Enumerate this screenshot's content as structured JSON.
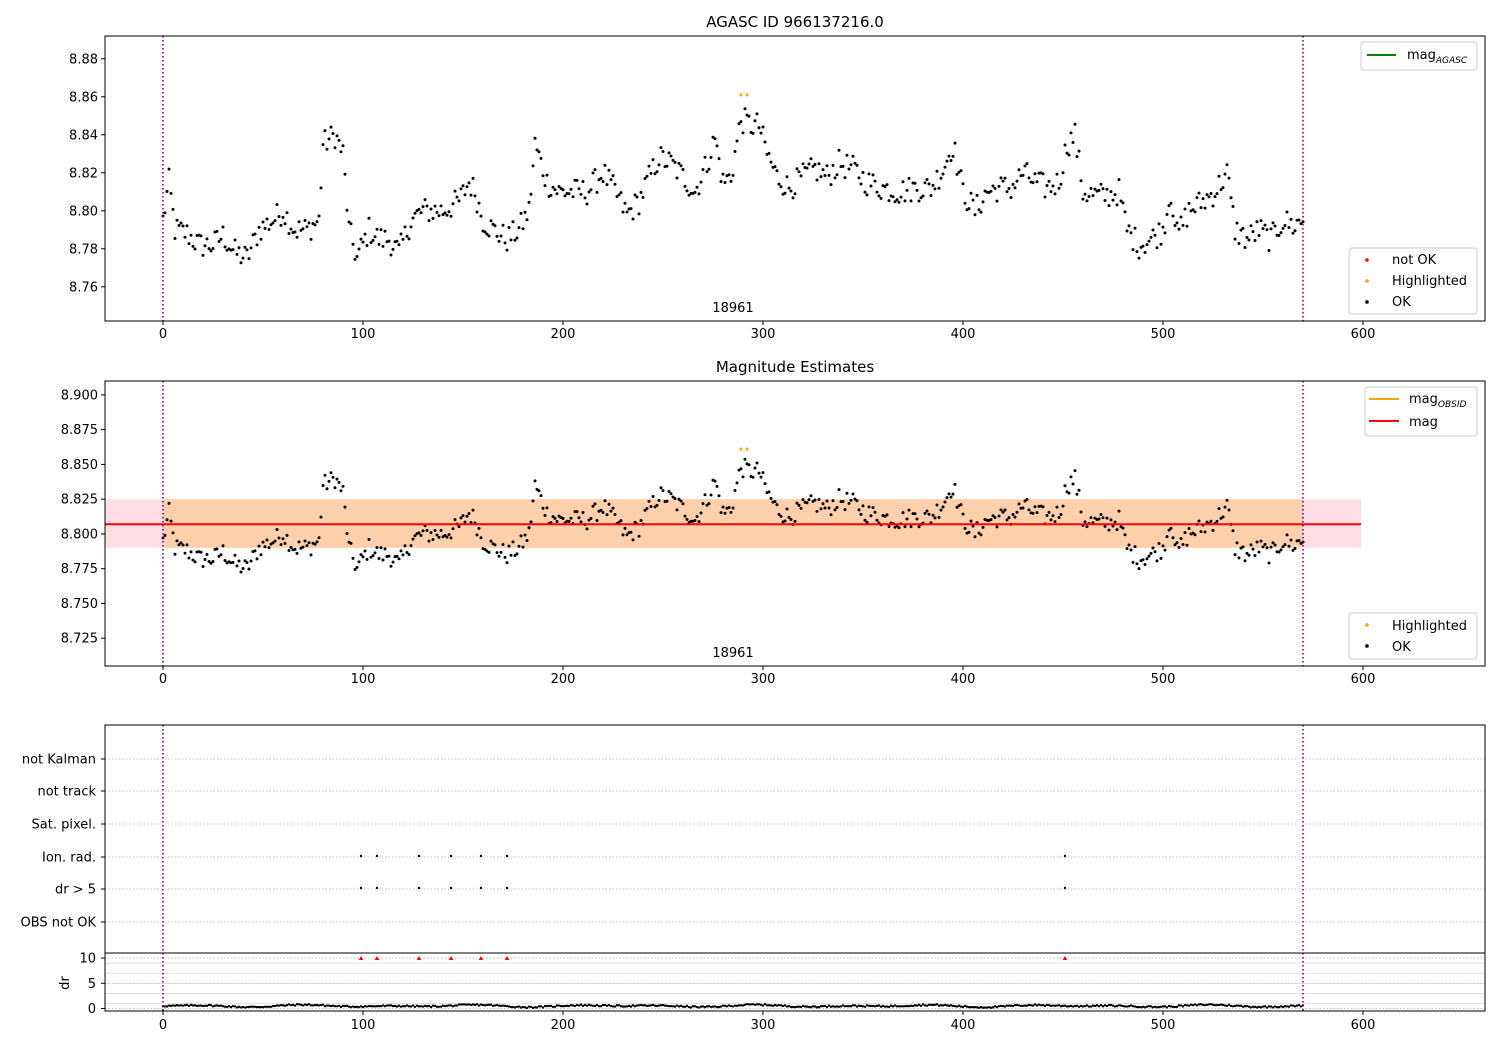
{
  "chart_data": [
    {
      "type": "scatter",
      "title": "AGASC ID 966137216.0",
      "annotation": "18961",
      "xlim": [
        -29,
        661
      ],
      "ylim": [
        8.742,
        8.892
      ],
      "xticks": [
        0,
        100,
        200,
        300,
        400,
        500,
        600
      ],
      "yticks": [
        8.76,
        8.78,
        8.8,
        8.82,
        8.84,
        8.86,
        8.88
      ],
      "ytick_labels": [
        "8.76",
        "8.78",
        "8.80",
        "8.82",
        "8.84",
        "8.86",
        "8.88"
      ],
      "vlines": [
        0,
        570
      ],
      "legend_top": [
        {
          "label": "mag",
          "sub": "AGASC",
          "color": "#008000"
        }
      ],
      "legend_bottom": [
        {
          "label": "not OK",
          "color": "#ff0000"
        },
        {
          "label": "Highlighted",
          "color": "#ffa500"
        },
        {
          "label": "OK",
          "color": "#000000"
        }
      ],
      "series": [
        {
          "name": "OK",
          "color": "#000000",
          "anchors": [
            [
              0,
              8.795
            ],
            [
              3,
              8.815
            ],
            [
              6,
              8.79
            ],
            [
              12,
              8.788
            ],
            [
              18,
              8.782
            ],
            [
              25,
              8.782
            ],
            [
              30,
              8.787
            ],
            [
              36,
              8.778
            ],
            [
              42,
              8.775
            ],
            [
              48,
              8.79
            ],
            [
              55,
              8.795
            ],
            [
              60,
              8.8
            ],
            [
              66,
              8.79
            ],
            [
              72,
              8.79
            ],
            [
              78,
              8.795
            ],
            [
              80,
              8.835
            ],
            [
              86,
              8.84
            ],
            [
              90,
              8.83
            ],
            [
              93,
              8.79
            ],
            [
              97,
              8.775
            ],
            [
              103,
              8.79
            ],
            [
              108,
              8.785
            ],
            [
              113,
              8.785
            ],
            [
              118,
              8.778
            ],
            [
              124,
              8.795
            ],
            [
              130,
              8.8
            ],
            [
              140,
              8.8
            ],
            [
              148,
              8.805
            ],
            [
              153,
              8.815
            ],
            [
              156,
              8.81
            ],
            [
              160,
              8.795
            ],
            [
              165,
              8.79
            ],
            [
              172,
              8.785
            ],
            [
              178,
              8.79
            ],
            [
              183,
              8.8
            ],
            [
              186,
              8.835
            ],
            [
              192,
              8.815
            ],
            [
              198,
              8.81
            ],
            [
              205,
              8.81
            ],
            [
              212,
              8.81
            ],
            [
              220,
              8.82
            ],
            [
              226,
              8.81
            ],
            [
              232,
              8.798
            ],
            [
              238,
              8.805
            ],
            [
              242,
              8.815
            ],
            [
              248,
              8.828
            ],
            [
              254,
              8.825
            ],
            [
              260,
              8.818
            ],
            [
              266,
              8.81
            ],
            [
              272,
              8.825
            ],
            [
              276,
              8.838
            ],
            [
              280,
              8.815
            ],
            [
              284,
              8.818
            ],
            [
              289,
              8.848
            ],
            [
              294,
              8.845
            ],
            [
              298,
              8.845
            ],
            [
              302,
              8.83
            ],
            [
              307,
              8.818
            ],
            [
              313,
              8.812
            ],
            [
              320,
              8.818
            ],
            [
              326,
              8.822
            ],
            [
              332,
              8.818
            ],
            [
              338,
              8.825
            ],
            [
              345,
              8.822
            ],
            [
              352,
              8.815
            ],
            [
              360,
              8.812
            ],
            [
              368,
              8.81
            ],
            [
              376,
              8.812
            ],
            [
              384,
              8.812
            ],
            [
              390,
              8.822
            ],
            [
              395,
              8.835
            ],
            [
              400,
              8.81
            ],
            [
              406,
              8.8
            ],
            [
              412,
              8.81
            ],
            [
              418,
              8.812
            ],
            [
              424,
              8.812
            ],
            [
              430,
              8.82
            ],
            [
              436,
              8.815
            ],
            [
              442,
              8.812
            ],
            [
              448,
              8.815
            ],
            [
              452,
              8.835
            ],
            [
              456,
              8.84
            ],
            [
              460,
              8.81
            ],
            [
              466,
              8.808
            ],
            [
              472,
              8.808
            ],
            [
              478,
              8.81
            ],
            [
              482,
              8.79
            ],
            [
              488,
              8.782
            ],
            [
              494,
              8.785
            ],
            [
              500,
              8.79
            ],
            [
              504,
              8.81
            ],
            [
              507,
              8.787
            ],
            [
              513,
              8.8
            ],
            [
              520,
              8.805
            ],
            [
              526,
              8.81
            ],
            [
              532,
              8.82
            ],
            [
              536,
              8.79
            ],
            [
              542,
              8.785
            ],
            [
              548,
              8.79
            ],
            [
              554,
              8.785
            ],
            [
              560,
              8.795
            ],
            [
              565,
              8.792
            ],
            [
              570,
              8.795
            ]
          ]
        },
        {
          "name": "Highlighted",
          "color": "#ffa500",
          "points": [
            [
              289,
              8.861
            ],
            [
              292,
              8.861
            ]
          ]
        }
      ]
    },
    {
      "type": "scatter",
      "title": "Magnitude Estimates",
      "annotation": "18961",
      "xlim": [
        -29,
        661
      ],
      "ylim": [
        8.705,
        8.91
      ],
      "xticks": [
        0,
        100,
        200,
        300,
        400,
        500,
        600
      ],
      "yticks": [
        8.725,
        8.75,
        8.775,
        8.8,
        8.825,
        8.85,
        8.875,
        8.9
      ],
      "ytick_labels": [
        "8.725",
        "8.750",
        "8.775",
        "8.800",
        "8.825",
        "8.850",
        "8.875",
        "8.900"
      ],
      "vlines": [
        0,
        570
      ],
      "bands": [
        {
          "x": [
            -29,
            599
          ],
          "y": [
            8.79,
            8.825
          ],
          "color": "#ffc0cb",
          "opacity": 0.5
        },
        {
          "x": [
            0,
            570
          ],
          "y": [
            8.79,
            8.825
          ],
          "color": "#ffa500",
          "opacity": 0.25
        }
      ],
      "hlines": [
        {
          "name": "mag",
          "y": 8.807,
          "x": [
            -29,
            599
          ],
          "color": "#ff0000"
        }
      ],
      "legend_top": [
        {
          "label": "mag",
          "sub": "OBSID",
          "color": "#ffa500"
        },
        {
          "label": "mag",
          "color": "#ff0000"
        }
      ],
      "legend_bottom": [
        {
          "label": "Highlighted",
          "color": "#ffa500"
        },
        {
          "label": "OK",
          "color": "#000000"
        }
      ],
      "series": [
        {
          "name": "Highlighted",
          "color": "#ffa500",
          "points": [
            [
              289,
              8.861
            ],
            [
              292,
              8.861
            ]
          ]
        }
      ]
    },
    {
      "type": "scatter",
      "xlim": [
        -29,
        661
      ],
      "xticks": [
        0,
        100,
        200,
        300,
        400,
        500,
        600
      ],
      "vlines": [
        0,
        570
      ],
      "flag_rows": [
        "not Kalman",
        "not track",
        "Sat. pixel.",
        "Ion. rad.",
        "dr > 5",
        "OBS not OK"
      ],
      "flag_points": {
        "Ion. rad.": [
          99,
          107,
          128,
          144,
          159,
          172,
          451
        ],
        "dr > 5": [
          99,
          107,
          128,
          144,
          159,
          172,
          451
        ]
      },
      "dr_axis": {
        "ylabel": "dr",
        "ylim": [
          -0.5,
          11
        ],
        "yticks": [
          0,
          5,
          10
        ],
        "ytick_labels": [
          "0",
          "5",
          "10"
        ]
      },
      "dr_outliers": [
        99,
        107,
        128,
        144,
        159,
        172,
        451
      ],
      "dr_outlier_value": 10
    }
  ]
}
